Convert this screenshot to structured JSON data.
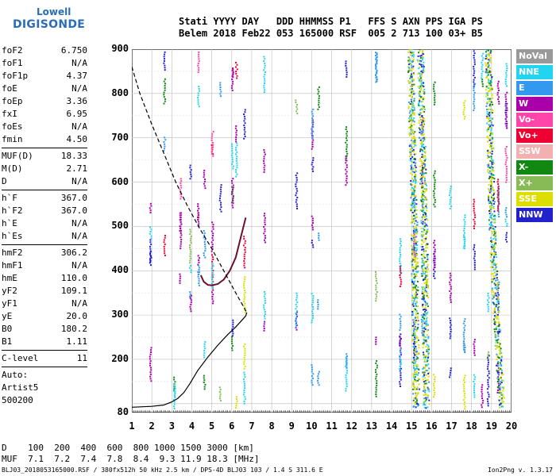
{
  "logo": {
    "line1": "Lowell",
    "line2": "DIGISONDE"
  },
  "header": {
    "labels": "Stati YYYY DAY   DDD HHMMSS P1   FFS S AXN PPS IGA PS",
    "values": "Belem 2018 Feb22 053 165000 RSF  005 2 713 100 03+ B5"
  },
  "params": {
    "group1": [
      {
        "label": "foF2",
        "value": "6.750"
      },
      {
        "label": "foF1",
        "value": "N/A"
      },
      {
        "label": "foF1p",
        "value": "4.37"
      },
      {
        "label": "foE",
        "value": "N/A"
      },
      {
        "label": "foEp",
        "value": "3.36"
      },
      {
        "label": "fxI",
        "value": "6.95"
      },
      {
        "label": "foEs",
        "value": "N/A"
      },
      {
        "label": "fmin",
        "value": "4.50"
      }
    ],
    "group2": [
      {
        "label": "MUF(D)",
        "value": "18.33"
      },
      {
        "label": "M(D)",
        "value": "2.71"
      },
      {
        "label": "D",
        "value": "N/A"
      }
    ],
    "group3": [
      {
        "label": "h`F",
        "value": "367.0"
      },
      {
        "label": "h`F2",
        "value": "367.0"
      },
      {
        "label": "h`E",
        "value": "N/A"
      },
      {
        "label": "h`Es",
        "value": "N/A"
      }
    ],
    "group4": [
      {
        "label": "hmF2",
        "value": "306.2"
      },
      {
        "label": "hmF1",
        "value": "N/A"
      },
      {
        "label": "hmE",
        "value": "110.0"
      },
      {
        "label": "yF2",
        "value": "109.1"
      },
      {
        "label": "yF1",
        "value": "N/A"
      },
      {
        "label": "yE",
        "value": "20.0"
      },
      {
        "label": "B0",
        "value": "180.2"
      },
      {
        "label": "B1",
        "value": "1.11"
      }
    ],
    "group5": [
      {
        "label": "C-level",
        "value": "11"
      }
    ],
    "auto": [
      "Auto:",
      "Artist5",
      "500200"
    ]
  },
  "legend": [
    {
      "label": "NoVal",
      "color": "#999999"
    },
    {
      "label": "NNE",
      "color": "#22d4f0"
    },
    {
      "label": "E",
      "color": "#3399ee"
    },
    {
      "label": "W",
      "color": "#aa00aa"
    },
    {
      "label": "Vo-",
      "color": "#ff44aa"
    },
    {
      "label": "Vo+",
      "color": "#ee0033"
    },
    {
      "label": "SSW",
      "color": "#f2b0b0"
    },
    {
      "label": "X-",
      "color": "#118811"
    },
    {
      "label": "X+",
      "color": "#88bb55"
    },
    {
      "label": "SSE",
      "color": "#dddd00"
    },
    {
      "label": "NNW",
      "color": "#2222cc"
    }
  ],
  "mufrow": {
    "dline": "D    100  200  400  600  800 1000 1500 3000 [km]",
    "mline": "MUF  7.1  7.2  7.4  7.8  8.4  9.3 11.9 18.3 [MHz]"
  },
  "footer": {
    "text": "BLJ03_2018053165000.RSF / 380fx512h 50 kHz 2.5 km / DPS-4D BLJ03 103 / 1.4 S 311.6 E",
    "version": "Ion2Png v. 1.3.17"
  },
  "chart_data": {
    "type": "scatter",
    "title": "",
    "xlabel": "",
    "ylabel": "",
    "xlim": [
      1,
      20
    ],
    "ylim": [
      80,
      900
    ],
    "x_ticks": [
      "1",
      "2",
      "3",
      "4",
      "5",
      "6",
      "7",
      "8",
      "9",
      "10",
      "11",
      "12",
      "13",
      "14",
      "15",
      "16",
      "17",
      "18",
      "19",
      "20"
    ],
    "y_ticks": [
      "80",
      "200",
      "300",
      "400",
      "500",
      "600",
      "700",
      "800",
      "900"
    ],
    "grid": true,
    "legend_position": "right",
    "vertical_column_freqs": [
      1.9,
      2.6,
      3.1,
      3.4,
      3.9,
      4.3,
      4.6,
      5.0,
      5.4,
      6.0,
      6.2,
      6.6,
      7.6,
      9.2,
      10.0,
      10.3,
      11.7,
      13.2,
      14.4,
      15.1,
      15.5,
      16.1,
      16.9,
      17.6,
      18.1,
      18.5,
      18.8,
      19.3,
      19.7
    ],
    "trace_o": {
      "name": "",
      "x": [
        4.45,
        4.6,
        4.8,
        5.0,
        5.3,
        5.6,
        5.9,
        6.2,
        6.45,
        6.7
      ],
      "y": [
        390,
        375,
        368,
        367,
        370,
        380,
        400,
        430,
        475,
        520
      ]
    },
    "profile_solid": {
      "x": [
        1.0,
        2.0,
        2.6,
        3.0,
        3.3,
        3.6,
        3.9,
        4.3,
        4.8,
        5.3,
        5.8,
        6.2,
        6.5,
        6.7,
        6.75
      ],
      "y": [
        92,
        94,
        97,
        104,
        112,
        125,
        145,
        175,
        205,
        232,
        256,
        273,
        288,
        298,
        306
      ]
    },
    "profile_dashed": {
      "x": [
        1.0,
        1.4,
        2.0,
        2.6,
        3.2,
        3.8,
        4.4,
        5.0,
        5.6,
        6.2,
        6.75
      ],
      "y": [
        860,
        800,
        730,
        665,
        600,
        545,
        495,
        450,
        400,
        350,
        306
      ]
    },
    "sse_band": {
      "x1": [
        14.9,
        15.0,
        15.1,
        15.15,
        15.2
      ],
      "x2": [
        15.4,
        15.5,
        15.6,
        15.65,
        15.7
      ],
      "x3": [
        18.8,
        18.9,
        19.0,
        19.2,
        19.5
      ],
      "y": [
        900,
        700,
        500,
        300,
        90
      ]
    }
  }
}
